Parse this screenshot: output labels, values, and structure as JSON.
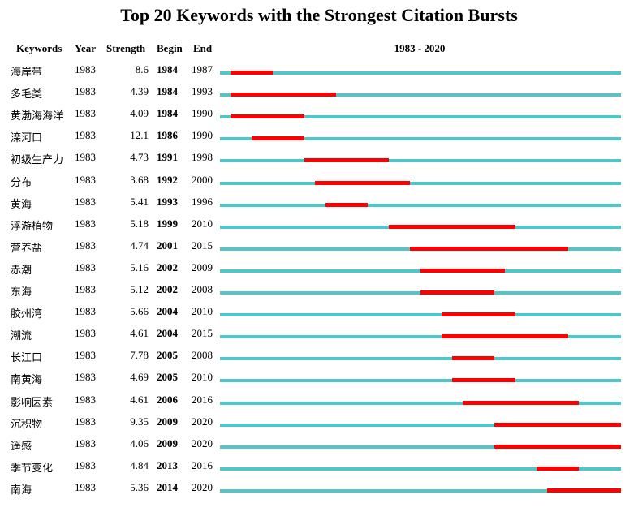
{
  "chart_data": {
    "type": "table",
    "title": "Top 20 Keywords with the Strongest Citation Bursts",
    "columns": [
      "Keywords",
      "Year",
      "Strength",
      "Begin",
      "End",
      "1983 - 2020"
    ],
    "range_start": 1983,
    "range_end": 2020,
    "range_label": "1983 - 2020",
    "colors": {
      "timeline": "#4fc6c9",
      "burst": "#ff0000"
    },
    "rows": [
      {
        "keyword": "海岸带",
        "year": 1983,
        "strength": "8.6",
        "begin": 1984,
        "end": 1987
      },
      {
        "keyword": "多毛类",
        "year": 1983,
        "strength": "4.39",
        "begin": 1984,
        "end": 1993
      },
      {
        "keyword": "黄渤海海洋",
        "year": 1983,
        "strength": "4.09",
        "begin": 1984,
        "end": 1990
      },
      {
        "keyword": "滦河口",
        "year": 1983,
        "strength": "12.1",
        "begin": 1986,
        "end": 1990
      },
      {
        "keyword": "初级生产力",
        "year": 1983,
        "strength": "4.73",
        "begin": 1991,
        "end": 1998
      },
      {
        "keyword": "分布",
        "year": 1983,
        "strength": "3.68",
        "begin": 1992,
        "end": 2000
      },
      {
        "keyword": "黄海",
        "year": 1983,
        "strength": "5.41",
        "begin": 1993,
        "end": 1996
      },
      {
        "keyword": "浮游植物",
        "year": 1983,
        "strength": "5.18",
        "begin": 1999,
        "end": 2010
      },
      {
        "keyword": "营养盐",
        "year": 1983,
        "strength": "4.74",
        "begin": 2001,
        "end": 2015
      },
      {
        "keyword": "赤潮",
        "year": 1983,
        "strength": "5.16",
        "begin": 2002,
        "end": 2009
      },
      {
        "keyword": "东海",
        "year": 1983,
        "strength": "5.12",
        "begin": 2002,
        "end": 2008
      },
      {
        "keyword": "胶州湾",
        "year": 1983,
        "strength": "5.66",
        "begin": 2004,
        "end": 2010
      },
      {
        "keyword": "潮流",
        "year": 1983,
        "strength": "4.61",
        "begin": 2004,
        "end": 2015
      },
      {
        "keyword": "长江口",
        "year": 1983,
        "strength": "7.78",
        "begin": 2005,
        "end": 2008
      },
      {
        "keyword": "南黄海",
        "year": 1983,
        "strength": "4.69",
        "begin": 2005,
        "end": 2010
      },
      {
        "keyword": "影响因素",
        "year": 1983,
        "strength": "4.61",
        "begin": 2006,
        "end": 2016
      },
      {
        "keyword": "沉积物",
        "year": 1983,
        "strength": "9.35",
        "begin": 2009,
        "end": 2020
      },
      {
        "keyword": "遥感",
        "year": 1983,
        "strength": "4.06",
        "begin": 2009,
        "end": 2020
      },
      {
        "keyword": "季节变化",
        "year": 1983,
        "strength": "4.84",
        "begin": 2013,
        "end": 2016
      },
      {
        "keyword": "南海",
        "year": 1983,
        "strength": "5.36",
        "begin": 2014,
        "end": 2020
      }
    ]
  }
}
